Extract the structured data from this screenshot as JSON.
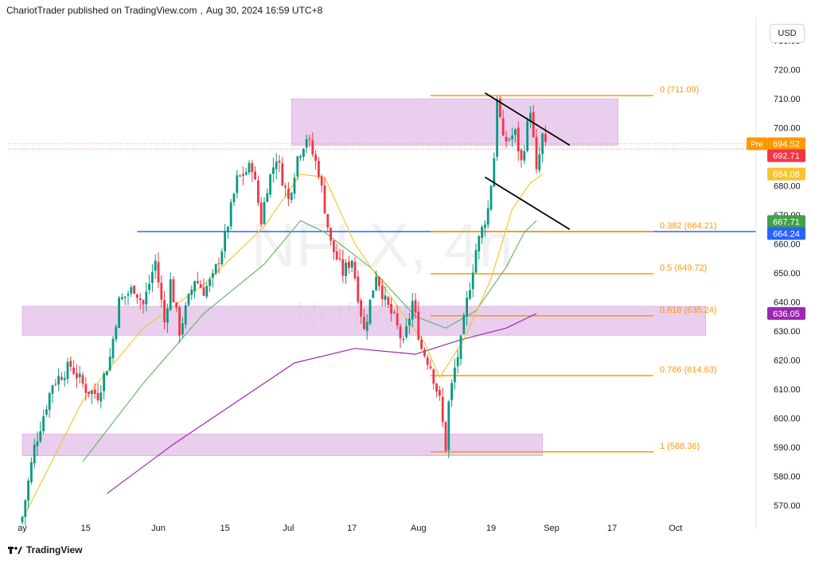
{
  "header": {
    "publisher": "ChariotTrader published on TradingView.com",
    "date": "Aug 30, 2024 16:59 UTC+8"
  },
  "currency": "USD",
  "footer": {
    "brand": "TradingView",
    "logo_icon": "tradingview-logo-icon"
  },
  "watermark": {
    "symbol": "NFLX, 4h",
    "company": "Netflix, Inc."
  },
  "colors": {
    "up": "#089981",
    "down": "#f23645",
    "ema_fast": "#f7c531",
    "ema_mid": "#66bb6a",
    "ema_slow": "#9c27b0",
    "fib": "#ff9800",
    "zone": "#e1bee7",
    "support": "#2962ff",
    "trend": "#000000"
  },
  "chart_data": {
    "type": "candlestick",
    "symbol": "NFLX",
    "timeframe": "4h",
    "ylim": [
      565,
      738
    ],
    "y_ticks": [
      570,
      580,
      590,
      600,
      610,
      620,
      630,
      640,
      650,
      660,
      670,
      680,
      690,
      700,
      710,
      720,
      730
    ],
    "y_tick_labels": [
      "570.00",
      "580.00",
      "590.00",
      "600.00",
      "610.00",
      "620.00",
      "630.00",
      "640.00",
      "650.00",
      "660.00",
      "670.00",
      "680.00",
      "690.00",
      "700.00",
      "710.00",
      "720.00",
      "730.00"
    ],
    "x_ticks": [
      {
        "label": "ay",
        "index": 0
      },
      {
        "label": "15",
        "index": 21
      },
      {
        "label": "Jun",
        "index": 45
      },
      {
        "label": "15",
        "index": 67
      },
      {
        "label": "Jul",
        "index": 88
      },
      {
        "label": "17",
        "index": 109
      },
      {
        "label": "Aug",
        "index": 131
      },
      {
        "label": "19",
        "index": 155
      },
      {
        "label": "Sep",
        "index": 175
      },
      {
        "label": "17",
        "index": 195
      },
      {
        "label": "Oct",
        "index": 216
      }
    ],
    "bars": 178,
    "key_points": [
      [
        0,
        566
      ],
      [
        4,
        590
      ],
      [
        10,
        612
      ],
      [
        16,
        618
      ],
      [
        21,
        610
      ],
      [
        25,
        608
      ],
      [
        29,
        621
      ],
      [
        32,
        640
      ],
      [
        37,
        645
      ],
      [
        40,
        639
      ],
      [
        44,
        654
      ],
      [
        47,
        633
      ],
      [
        49,
        647
      ],
      [
        52,
        630
      ],
      [
        57,
        648
      ],
      [
        60,
        644
      ],
      [
        63,
        648
      ],
      [
        67,
        662
      ],
      [
        71,
        682
      ],
      [
        76,
        687
      ],
      [
        79,
        668
      ],
      [
        81,
        680
      ],
      [
        84,
        690
      ],
      [
        88,
        675
      ],
      [
        91,
        690
      ],
      [
        94,
        697
      ],
      [
        98,
        685
      ],
      [
        102,
        660
      ],
      [
        106,
        650
      ],
      [
        109,
        655
      ],
      [
        113,
        630
      ],
      [
        117,
        650
      ],
      [
        120,
        640
      ],
      [
        123,
        634
      ],
      [
        126,
        625
      ],
      [
        129,
        640
      ],
      [
        132,
        624
      ],
      [
        135,
        618
      ],
      [
        138,
        606
      ],
      [
        140,
        590
      ],
      [
        141,
        605
      ],
      [
        143,
        617
      ],
      [
        145,
        626
      ],
      [
        147,
        640
      ],
      [
        150,
        658
      ],
      [
        154,
        672
      ],
      [
        156,
        690
      ],
      [
        157,
        711
      ],
      [
        159,
        695
      ],
      [
        163,
        698
      ],
      [
        165,
        688
      ],
      [
        168,
        707
      ],
      [
        170,
        684
      ],
      [
        172,
        697
      ],
      [
        173,
        693
      ]
    ],
    "fib_levels": [
      {
        "ratio": "0",
        "price": 711.09,
        "label": "0 (711.09)"
      },
      {
        "ratio": "0.382",
        "price": 664.21,
        "label": "0.382 (664.21)"
      },
      {
        "ratio": "0.5",
        "price": 649.72,
        "label": "0.5 (649.72)"
      },
      {
        "ratio": "0.618",
        "price": 635.24,
        "label": "0.618 (635.24)"
      },
      {
        "ratio": "0.786",
        "price": 614.63,
        "label": "0.786 (614.63)"
      },
      {
        "ratio": "1",
        "price": 588.36,
        "label": "1 (588.36)"
      }
    ],
    "fib_anchor_index": 135,
    "zones": [
      {
        "name": "resistance-zone",
        "from_index": 89,
        "to_index": 197,
        "low": 694,
        "high": 710
      },
      {
        "name": "mid-zone",
        "from_index": 0,
        "to_index": 226,
        "low": 628.5,
        "high": 638.5
      },
      {
        "name": "lower-zone",
        "from_index": 0,
        "to_index": 172,
        "low": 587,
        "high": 594.5
      }
    ],
    "support_line": {
      "price": 664.24,
      "from_index": 38
    },
    "trendlines": [
      {
        "name": "upper-trendline",
        "from": [
          153,
          712
        ],
        "to": [
          181,
          694
        ]
      },
      {
        "name": "lower-trendline",
        "from": [
          153,
          683
        ],
        "to": [
          181,
          665
        ]
      }
    ],
    "dotted_lines": [
      {
        "price": 694.52
      },
      {
        "price": 692.71
      }
    ],
    "ema_fast_points": [
      [
        0,
        565
      ],
      [
        20,
        606
      ],
      [
        40,
        631
      ],
      [
        60,
        646
      ],
      [
        80,
        666
      ],
      [
        92,
        684
      ],
      [
        100,
        683
      ],
      [
        110,
        660
      ],
      [
        125,
        637
      ],
      [
        133,
        626
      ],
      [
        138,
        614
      ],
      [
        146,
        627
      ],
      [
        155,
        648
      ],
      [
        162,
        672
      ],
      [
        168,
        681
      ],
      [
        172,
        684
      ]
    ],
    "ema_mid_points": [
      [
        20,
        585
      ],
      [
        40,
        612
      ],
      [
        60,
        636
      ],
      [
        80,
        653
      ],
      [
        92,
        668
      ],
      [
        100,
        664
      ],
      [
        115,
        652
      ],
      [
        130,
        635
      ],
      [
        140,
        631
      ],
      [
        150,
        637
      ],
      [
        160,
        652
      ],
      [
        166,
        664
      ],
      [
        170,
        668
      ]
    ],
    "ema_slow_points": [
      [
        28,
        574
      ],
      [
        50,
        591
      ],
      [
        70,
        605
      ],
      [
        90,
        619
      ],
      [
        110,
        624
      ],
      [
        130,
        622
      ],
      [
        145,
        627
      ],
      [
        160,
        631
      ],
      [
        170,
        636
      ]
    ],
    "price_badges": [
      {
        "label": "Pre",
        "value": "694.52",
        "price": 694.52,
        "color": "#ff9800"
      },
      {
        "value": "692.71",
        "price": 692.71,
        "color": "#f23645"
      },
      {
        "value": "684.08",
        "price": 684.08,
        "color": "#f7c531"
      },
      {
        "value": "667.71",
        "price": 667.71,
        "color": "#43a047"
      },
      {
        "value": "664.24",
        "price": 664.24,
        "color": "#2962ff"
      },
      {
        "value": "636.05",
        "price": 636.05,
        "color": "#9c27b0"
      }
    ]
  }
}
